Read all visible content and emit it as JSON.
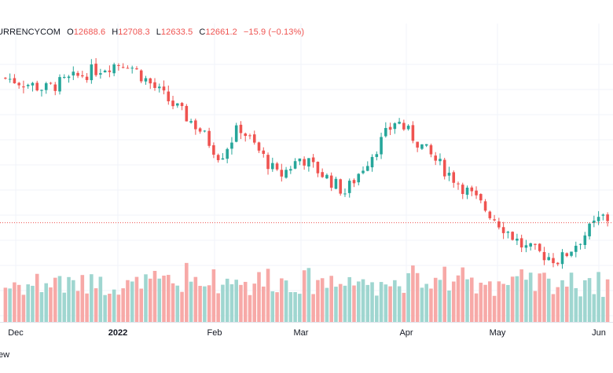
{
  "legend": {
    "symbol": "URRENCYCOM",
    "o_label": "O",
    "o_value": "12688.6",
    "h_label": "H",
    "h_value": "12708.3",
    "l_label": "L",
    "l_value": "12633.5",
    "c_label": "C",
    "c_value": "12661.2",
    "change": "−15.9 (−0.13%)"
  },
  "footer_text": "ew",
  "colors": {
    "up": "#26a69a",
    "down": "#ef5350",
    "volume_up": "#9fd6d0",
    "volume_down": "#f7a9a7",
    "grid": "#f0f3fa",
    "price_line": "#ef5350",
    "axis_text": "#131722"
  },
  "chart_data": {
    "type": "candlestick",
    "timeframe": "daily",
    "xaxis_tick_labels": [
      "Dec",
      "2022",
      "Feb",
      "Mar",
      "Apr",
      "May",
      "Jun"
    ],
    "yaxis_visible": false,
    "last_close_reference_line": true,
    "ohlc_trend_keypoints": [
      {
        "date": "Nov 29",
        "close": 15950
      },
      {
        "date": "Dec 10",
        "close": 15700
      },
      {
        "date": "Dec 24",
        "close": 16100
      },
      {
        "date": "Dec 30",
        "close": 16250
      },
      {
        "date": "Jan 04",
        "close": 16300
      },
      {
        "date": "Jan 27",
        "close": 14800
      },
      {
        "date": "Feb 03",
        "close": 14150
      },
      {
        "date": "Feb 10",
        "close": 14850
      },
      {
        "date": "Feb 24",
        "close": 13700
      },
      {
        "date": "Mar 01",
        "close": 14150
      },
      {
        "date": "Mar 14",
        "close": 13350
      },
      {
        "date": "Mar 29",
        "close": 15000
      },
      {
        "date": "Apr 12",
        "close": 14000
      },
      {
        "date": "Apr 26",
        "close": 13100
      },
      {
        "date": "May 09",
        "close": 12100
      },
      {
        "date": "May 20",
        "close": 11800
      },
      {
        "date": "Jun 02",
        "close": 12800
      },
      {
        "date": "Jun 07",
        "close": 12661.2
      }
    ],
    "volume_pane": true
  }
}
